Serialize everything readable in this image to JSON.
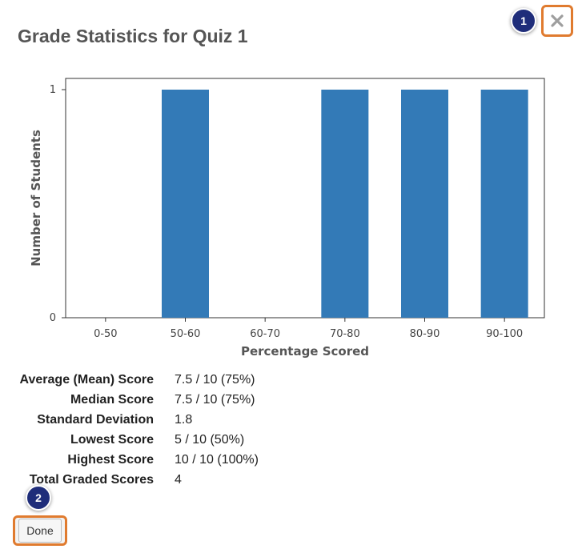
{
  "dialog": {
    "title": "Grade Statistics for Quiz 1",
    "close_icon": "close-x-icon",
    "done_label": "Done"
  },
  "callouts": [
    "1",
    "2"
  ],
  "chart_data": {
    "type": "bar",
    "categories": [
      "0-50",
      "50-60",
      "60-70",
      "70-80",
      "80-90",
      "90-100"
    ],
    "values": [
      0,
      1,
      0,
      1,
      1,
      1
    ],
    "xlabel": "Percentage Scored",
    "ylabel": "Number of Students",
    "ylim": [
      0,
      1
    ],
    "yticks": [
      "0",
      "1"
    ],
    "bar_color": "#337ab7",
    "grid": false
  },
  "stats": [
    {
      "label": "Average (Mean) Score",
      "value": "7.5 / 10 (75%)"
    },
    {
      "label": "Median Score",
      "value": "7.5 / 10 (75%)"
    },
    {
      "label": "Standard Deviation",
      "value": "1.8"
    },
    {
      "label": "Lowest Score",
      "value": "5 / 10 (50%)"
    },
    {
      "label": "Highest Score",
      "value": "10 / 10 (100%)"
    },
    {
      "label": "Total Graded Scores",
      "value": "4"
    }
  ],
  "colors": {
    "accent_outline": "#e07b2f",
    "callout_bg": "#1f2d7a",
    "title_text": "#555555"
  }
}
